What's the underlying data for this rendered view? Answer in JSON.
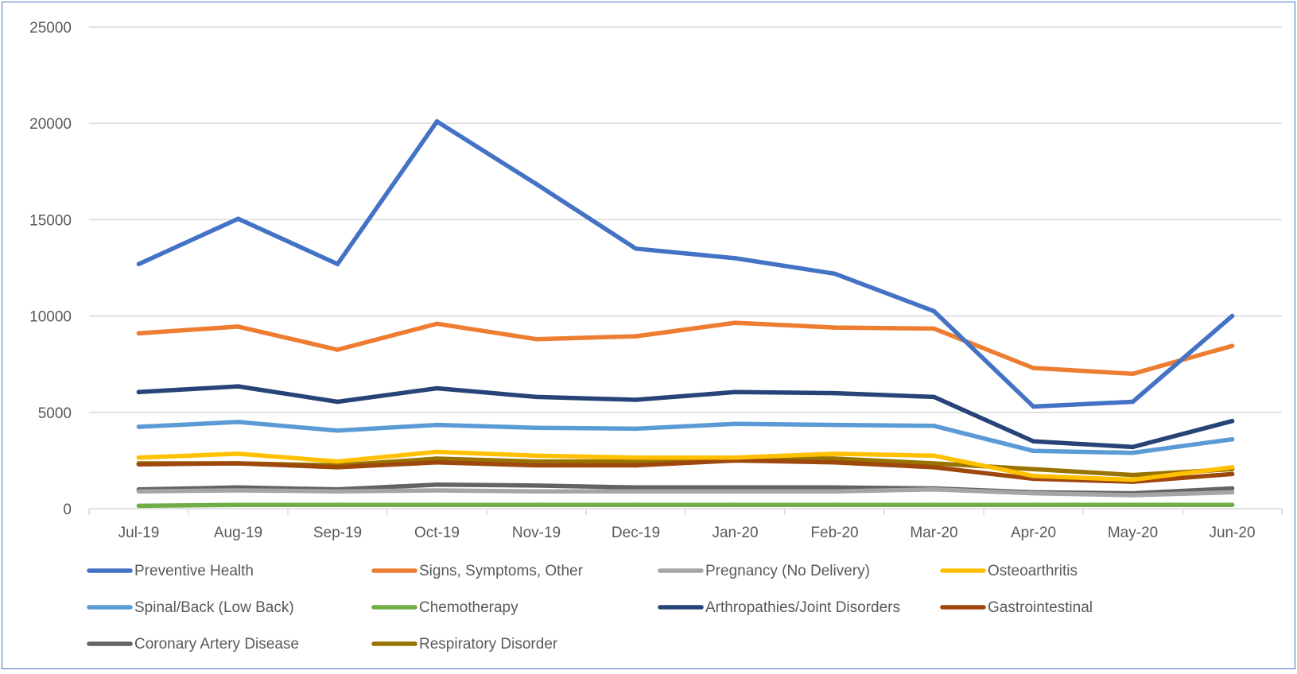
{
  "chart_data": {
    "type": "line",
    "title": "",
    "xlabel": "",
    "ylabel": "",
    "ylim": [
      0,
      25000
    ],
    "yticks": [
      0,
      5000,
      10000,
      15000,
      20000,
      25000
    ],
    "grid": true,
    "legend_position": "bottom",
    "categories": [
      "Jul-19",
      "Aug-19",
      "Sep-19",
      "Oct-19",
      "Nov-19",
      "Dec-19",
      "Jan-20",
      "Feb-20",
      "Mar-20",
      "Apr-20",
      "May-20",
      "Jun-20"
    ],
    "series": [
      {
        "name": "Preventive Health",
        "color": "#4472c4",
        "values": [
          12700,
          15050,
          12700,
          20100,
          16850,
          13500,
          13000,
          12200,
          10250,
          5300,
          5550,
          10000
        ]
      },
      {
        "name": "Signs, Symptoms, Other",
        "color": "#ed7d31",
        "values": [
          9100,
          9450,
          8250,
          9600,
          8800,
          8950,
          9650,
          9400,
          9350,
          7300,
          7000,
          8450
        ]
      },
      {
        "name": "Pregnancy (No Delivery)",
        "color": "#a5a5a5",
        "values": [
          900,
          950,
          900,
          950,
          900,
          900,
          900,
          900,
          1000,
          800,
          700,
          850
        ]
      },
      {
        "name": "Osteoarthritis",
        "color": "#ffc000",
        "values": [
          2650,
          2850,
          2450,
          2950,
          2750,
          2650,
          2650,
          2850,
          2750,
          1700,
          1500,
          2150
        ]
      },
      {
        "name": "Spinal/Back (Low Back)",
        "color": "#5b9bd5",
        "values": [
          4250,
          4500,
          4050,
          4350,
          4200,
          4150,
          4400,
          4350,
          4300,
          3000,
          2900,
          3600
        ]
      },
      {
        "name": "Chemotherapy",
        "color": "#70ad47",
        "values": [
          150,
          200,
          200,
          200,
          200,
          200,
          200,
          200,
          200,
          200,
          200,
          200
        ]
      },
      {
        "name": "Arthropathies/Joint Disorders",
        "color": "#264478",
        "values": [
          6050,
          6350,
          5550,
          6250,
          5800,
          5650,
          6050,
          6000,
          5800,
          3500,
          3200,
          4550
        ]
      },
      {
        "name": "Gastrointestinal",
        "color": "#9e480e",
        "values": [
          2300,
          2350,
          2150,
          2400,
          2250,
          2250,
          2500,
          2400,
          2150,
          1550,
          1400,
          1800
        ]
      },
      {
        "name": "Coronary Artery Disease",
        "color": "#636363",
        "values": [
          1000,
          1100,
          1000,
          1250,
          1200,
          1100,
          1100,
          1100,
          1050,
          850,
          800,
          1050
        ]
      },
      {
        "name": "Respiratory Disorder",
        "color": "#997300",
        "values": [
          2350,
          2350,
          2250,
          2600,
          2450,
          2450,
          2650,
          2600,
          2350,
          2050,
          1750,
          2050
        ]
      }
    ]
  }
}
